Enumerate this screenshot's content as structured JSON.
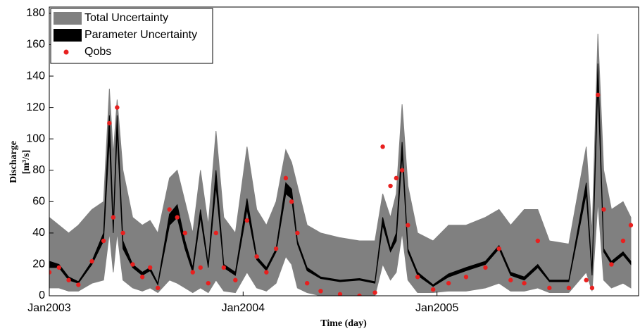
{
  "chart_data": {
    "type": "band",
    "xlabel": "Time (day)",
    "ylabel": [
      "Discharge",
      "[m³/s]"
    ],
    "x": [
      2003.0,
      2003.05,
      2003.1,
      2003.15,
      2003.22,
      2003.28,
      2003.31,
      2003.33,
      2003.35,
      2003.38,
      2003.43,
      2003.48,
      2003.52,
      2003.56,
      2003.62,
      2003.66,
      2003.7,
      2003.74,
      2003.78,
      2003.82,
      2003.86,
      2003.9,
      2003.96,
      2004.02,
      2004.07,
      2004.12,
      2004.17,
      2004.22,
      2004.25,
      2004.28,
      2004.33,
      2004.4,
      2004.5,
      2004.6,
      2004.68,
      2004.72,
      2004.76,
      2004.79,
      2004.82,
      2004.85,
      2004.9,
      2004.98,
      2005.06,
      2005.15,
      2005.25,
      2005.32,
      2005.38,
      2005.45,
      2005.52,
      2005.58,
      2005.68,
      2005.77,
      2005.8,
      2005.83,
      2005.86,
      2005.9,
      2005.96,
      2006.0
    ],
    "series": [
      {
        "name": "Total Uncertainty",
        "color": "#808080",
        "lower": [
          5,
          5,
          3,
          3,
          8,
          10,
          40,
          15,
          40,
          10,
          5,
          3,
          5,
          2,
          10,
          8,
          5,
          2,
          5,
          2,
          10,
          3,
          2,
          15,
          5,
          3,
          8,
          25,
          20,
          5,
          2,
          0,
          0,
          0,
          0,
          20,
          10,
          15,
          40,
          10,
          2,
          2,
          3,
          3,
          5,
          8,
          3,
          3,
          5,
          2,
          2,
          15,
          3,
          60,
          10,
          5,
          8,
          5
        ],
        "upper": [
          50,
          45,
          40,
          45,
          55,
          60,
          132,
          90,
          125,
          80,
          50,
          45,
          48,
          40,
          75,
          80,
          60,
          40,
          80,
          45,
          105,
          50,
          40,
          95,
          55,
          45,
          60,
          93,
          85,
          70,
          45,
          40,
          37,
          35,
          35,
          65,
          50,
          65,
          122,
          70,
          40,
          35,
          45,
          45,
          50,
          55,
          45,
          55,
          55,
          35,
          33,
          95,
          40,
          167,
          80,
          55,
          60,
          50
        ]
      },
      {
        "name": "Parameter Uncertainty",
        "color": "#000000",
        "lower": [
          18,
          18,
          10,
          8,
          20,
          35,
          100,
          40,
          105,
          30,
          18,
          13,
          16,
          7,
          45,
          50,
          30,
          15,
          50,
          18,
          70,
          18,
          13,
          55,
          23,
          16,
          28,
          65,
          62,
          33,
          16,
          11,
          9,
          10,
          8,
          45,
          28,
          35,
          90,
          28,
          13,
          6,
          12,
          16,
          20,
          30,
          13,
          10,
          18,
          9,
          9,
          65,
          13,
          135,
          28,
          20,
          26,
          20
        ],
        "upper": [
          22,
          20,
          12,
          9,
          22,
          40,
          115,
          45,
          115,
          35,
          20,
          15,
          18,
          8,
          52,
          58,
          35,
          18,
          55,
          20,
          80,
          20,
          15,
          62,
          25,
          18,
          30,
          72,
          68,
          35,
          18,
          12,
          10,
          11,
          9,
          50,
          30,
          40,
          98,
          30,
          15,
          7,
          14,
          18,
          22,
          32,
          15,
          12,
          20,
          10,
          10,
          72,
          15,
          148,
          30,
          22,
          28,
          22
        ]
      },
      {
        "name": "Qobs",
        "color": "#e8201f",
        "values": [
          15,
          18,
          10,
          7,
          22,
          35,
          110,
          50,
          120,
          40,
          20,
          12,
          18,
          5,
          55,
          50,
          40,
          15,
          18,
          8,
          40,
          18,
          10,
          48,
          25,
          15,
          30,
          75,
          60,
          40,
          8,
          3,
          1,
          0,
          2,
          95,
          70,
          75,
          80,
          45,
          12,
          4,
          8,
          12,
          18,
          30,
          10,
          8,
          35,
          5,
          5,
          10,
          5,
          128,
          55,
          20,
          35,
          45
        ]
      }
    ],
    "xlim": [
      2003,
      2006.04
    ],
    "ylim": [
      0,
      184
    ],
    "xticks": [
      {
        "value": 2003,
        "label": "Jan2003"
      },
      {
        "value": 2004,
        "label": "Jan2004"
      },
      {
        "value": 2005,
        "label": "Jan2005"
      }
    ],
    "yticks": [
      0,
      20,
      40,
      60,
      80,
      100,
      120,
      140,
      160,
      180
    ],
    "legend": "upper-left"
  }
}
